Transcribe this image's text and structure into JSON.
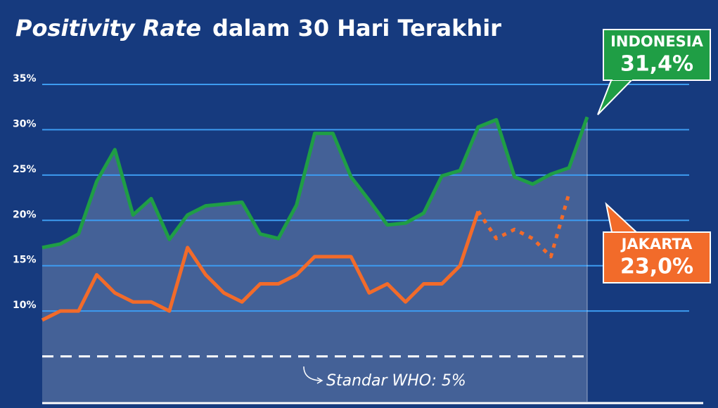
{
  "chart_data": {
    "type": "line",
    "title": "Positivity Rate",
    "subtitle": "dalam 30 Hari Terakhir",
    "categories": [
      null,
      null,
      null,
      null,
      null,
      null,
      null,
      null,
      null,
      null,
      null,
      null,
      null,
      null,
      null,
      null,
      null,
      null,
      null,
      null,
      null,
      null,
      null,
      null,
      null,
      null,
      null,
      null,
      null,
      null,
      null
    ],
    "series": [
      {
        "name": "INDONESIA",
        "color": "#1f9e45",
        "area": true,
        "callout": "31,4%",
        "values": [
          17.0,
          17.4,
          18.5,
          24.3,
          27.8,
          20.6,
          22.4,
          17.9,
          20.6,
          21.6,
          21.8,
          22.0,
          18.5,
          18.0,
          21.7,
          29.6,
          29.6,
          24.8,
          22.2,
          19.5,
          19.7,
          20.8,
          24.9,
          25.5,
          30.3,
          31.1,
          24.8,
          24.0,
          25.1,
          25.8,
          31.4
        ]
      },
      {
        "name": "JAKARTA",
        "color": "#f26b2a",
        "dotted_from": 24,
        "callout": "23,0%",
        "values": [
          9,
          10,
          10,
          14,
          12,
          11,
          11,
          10,
          17,
          14,
          12,
          11,
          13,
          13,
          14,
          16,
          16,
          16,
          12,
          13,
          11,
          13,
          13,
          15,
          21,
          18,
          19,
          18,
          16,
          23,
          null
        ]
      }
    ],
    "ylim": [
      0,
      35
    ],
    "yticks": [
      {
        "value": 10,
        "label": "10%"
      },
      {
        "value": 15,
        "label": "15%"
      },
      {
        "value": 20,
        "label": "20%"
      },
      {
        "value": 25,
        "label": "25%"
      },
      {
        "value": 30,
        "label": "30%"
      },
      {
        "value": 35,
        "label": "35%"
      }
    ],
    "grid": true,
    "reference_line": {
      "value": 5,
      "label": "Standar WHO: 5%"
    }
  }
}
